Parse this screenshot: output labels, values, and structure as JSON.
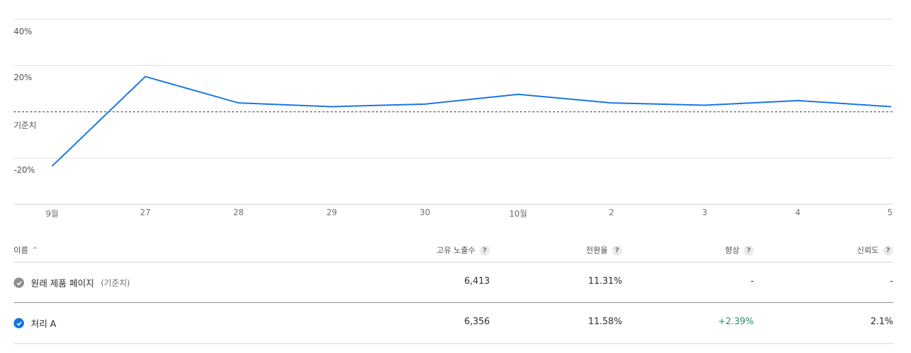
{
  "chart_data": {
    "type": "line",
    "x": [
      "9월",
      "27",
      "28",
      "29",
      "30",
      "10월",
      "2",
      "3",
      "4",
      "5"
    ],
    "yticks": [
      "40%",
      "20%",
      "-20%"
    ],
    "ylim": [
      -40,
      40
    ],
    "baseline_label": "기준치",
    "baseline_value": 0,
    "series": [
      {
        "values": [
          -23.5,
          15.2,
          3.8,
          2.2,
          3.3,
          7.5,
          3.8,
          2.8,
          4.8,
          2.2
        ]
      }
    ],
    "grid": true,
    "line_color": "#1473e6",
    "baseline_color": "#6e6e6e"
  },
  "table": {
    "headers": {
      "name": "이름",
      "unique_visitors": "고유 노출수",
      "conversion_rate": "전환율",
      "lift": "향상",
      "confidence": "신뢰도",
      "help": "?"
    },
    "rows": [
      {
        "name": "원래 제품 페이지",
        "tag": "(기준치)",
        "status": "gray-check",
        "unique_visitors": "6,413",
        "conversion_rate": "11.31%",
        "lift": "-",
        "confidence": "-"
      },
      {
        "name": "처리 A",
        "tag": "",
        "status": "blue-check",
        "unique_visitors": "6,356",
        "conversion_rate": "11.58%",
        "lift": "+2.39%",
        "confidence": "2.1%"
      }
    ],
    "colors": {
      "gray_check": "#8e8e8e",
      "blue_check": "#1473e6",
      "positive": "#268e6c"
    }
  }
}
